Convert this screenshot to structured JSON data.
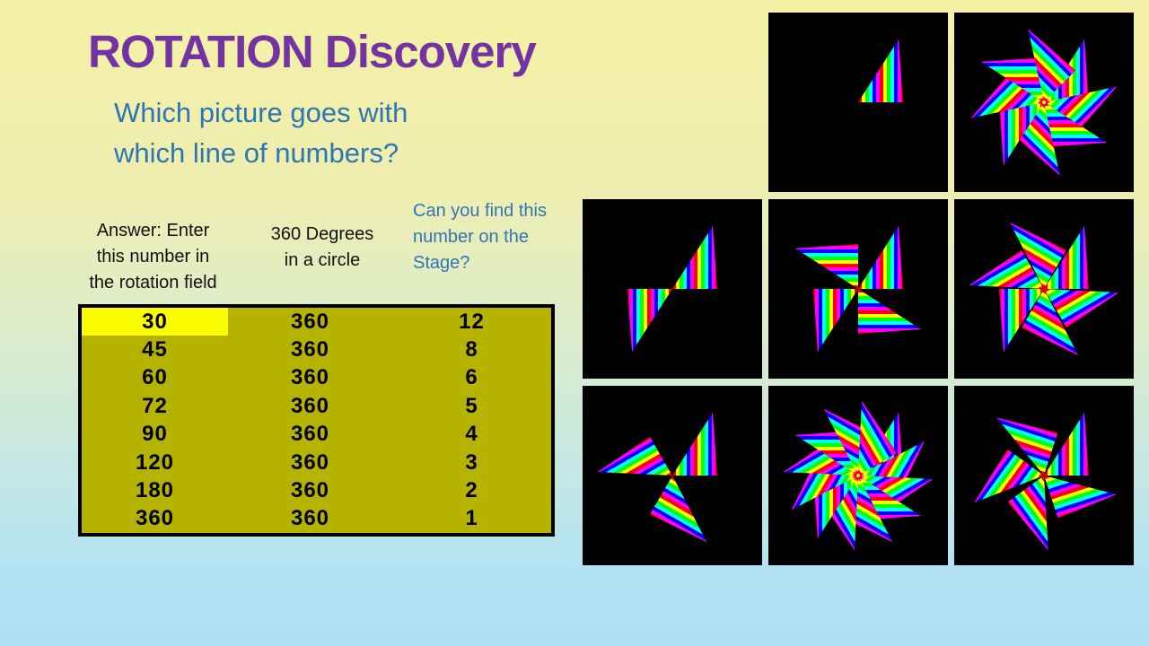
{
  "title": "ROTATION Discovery",
  "subtitle": "Which picture goes with\nwhich line of numbers?",
  "headers": {
    "answer": "Answer: Enter\nthis number in\nthe rotation field",
    "degrees": "360 Degrees\nin a circle",
    "stage": "Can you find this\nnumber on the\nStage?"
  },
  "table": {
    "columns": [
      "rotation_degrees",
      "degrees_in_circle",
      "number_of_copies"
    ],
    "rows": [
      [
        30,
        360,
        12
      ],
      [
        45,
        360,
        8
      ],
      [
        60,
        360,
        6
      ],
      [
        72,
        360,
        5
      ],
      [
        90,
        360,
        4
      ],
      [
        120,
        360,
        3
      ],
      [
        180,
        360,
        2
      ],
      [
        360,
        360,
        1
      ]
    ],
    "highlight": {
      "row": 0,
      "col": 0
    }
  },
  "tiles": [
    {
      "row": 0,
      "col": 1,
      "arms": 1,
      "angle": 360,
      "center_dot": false
    },
    {
      "row": 0,
      "col": 2,
      "arms": 8,
      "angle": 45,
      "center_dot": true
    },
    {
      "row": 1,
      "col": 0,
      "arms": 2,
      "angle": 180,
      "center_dot": false
    },
    {
      "row": 1,
      "col": 1,
      "arms": 4,
      "angle": 90,
      "center_dot": false
    },
    {
      "row": 1,
      "col": 2,
      "arms": 6,
      "angle": 60,
      "center_dot": false
    },
    {
      "row": 2,
      "col": 0,
      "arms": 3,
      "angle": 120,
      "center_dot": false
    },
    {
      "row": 2,
      "col": 1,
      "arms": 12,
      "angle": 30,
      "center_dot": true
    },
    {
      "row": 2,
      "col": 2,
      "arms": 5,
      "angle": 72,
      "center_dot": false
    }
  ],
  "colors": {
    "title_purple": "#7333A2",
    "accent_blue": "#2E75B6",
    "table_olive": "#B5B300",
    "highlight_yellow": "#FCFC00",
    "tile_background": "#000000",
    "stripe_palette": [
      "#ff0000",
      "#ffff00",
      "#00ff00",
      "#00ffff",
      "#0000ff",
      "#ff00ff"
    ]
  }
}
